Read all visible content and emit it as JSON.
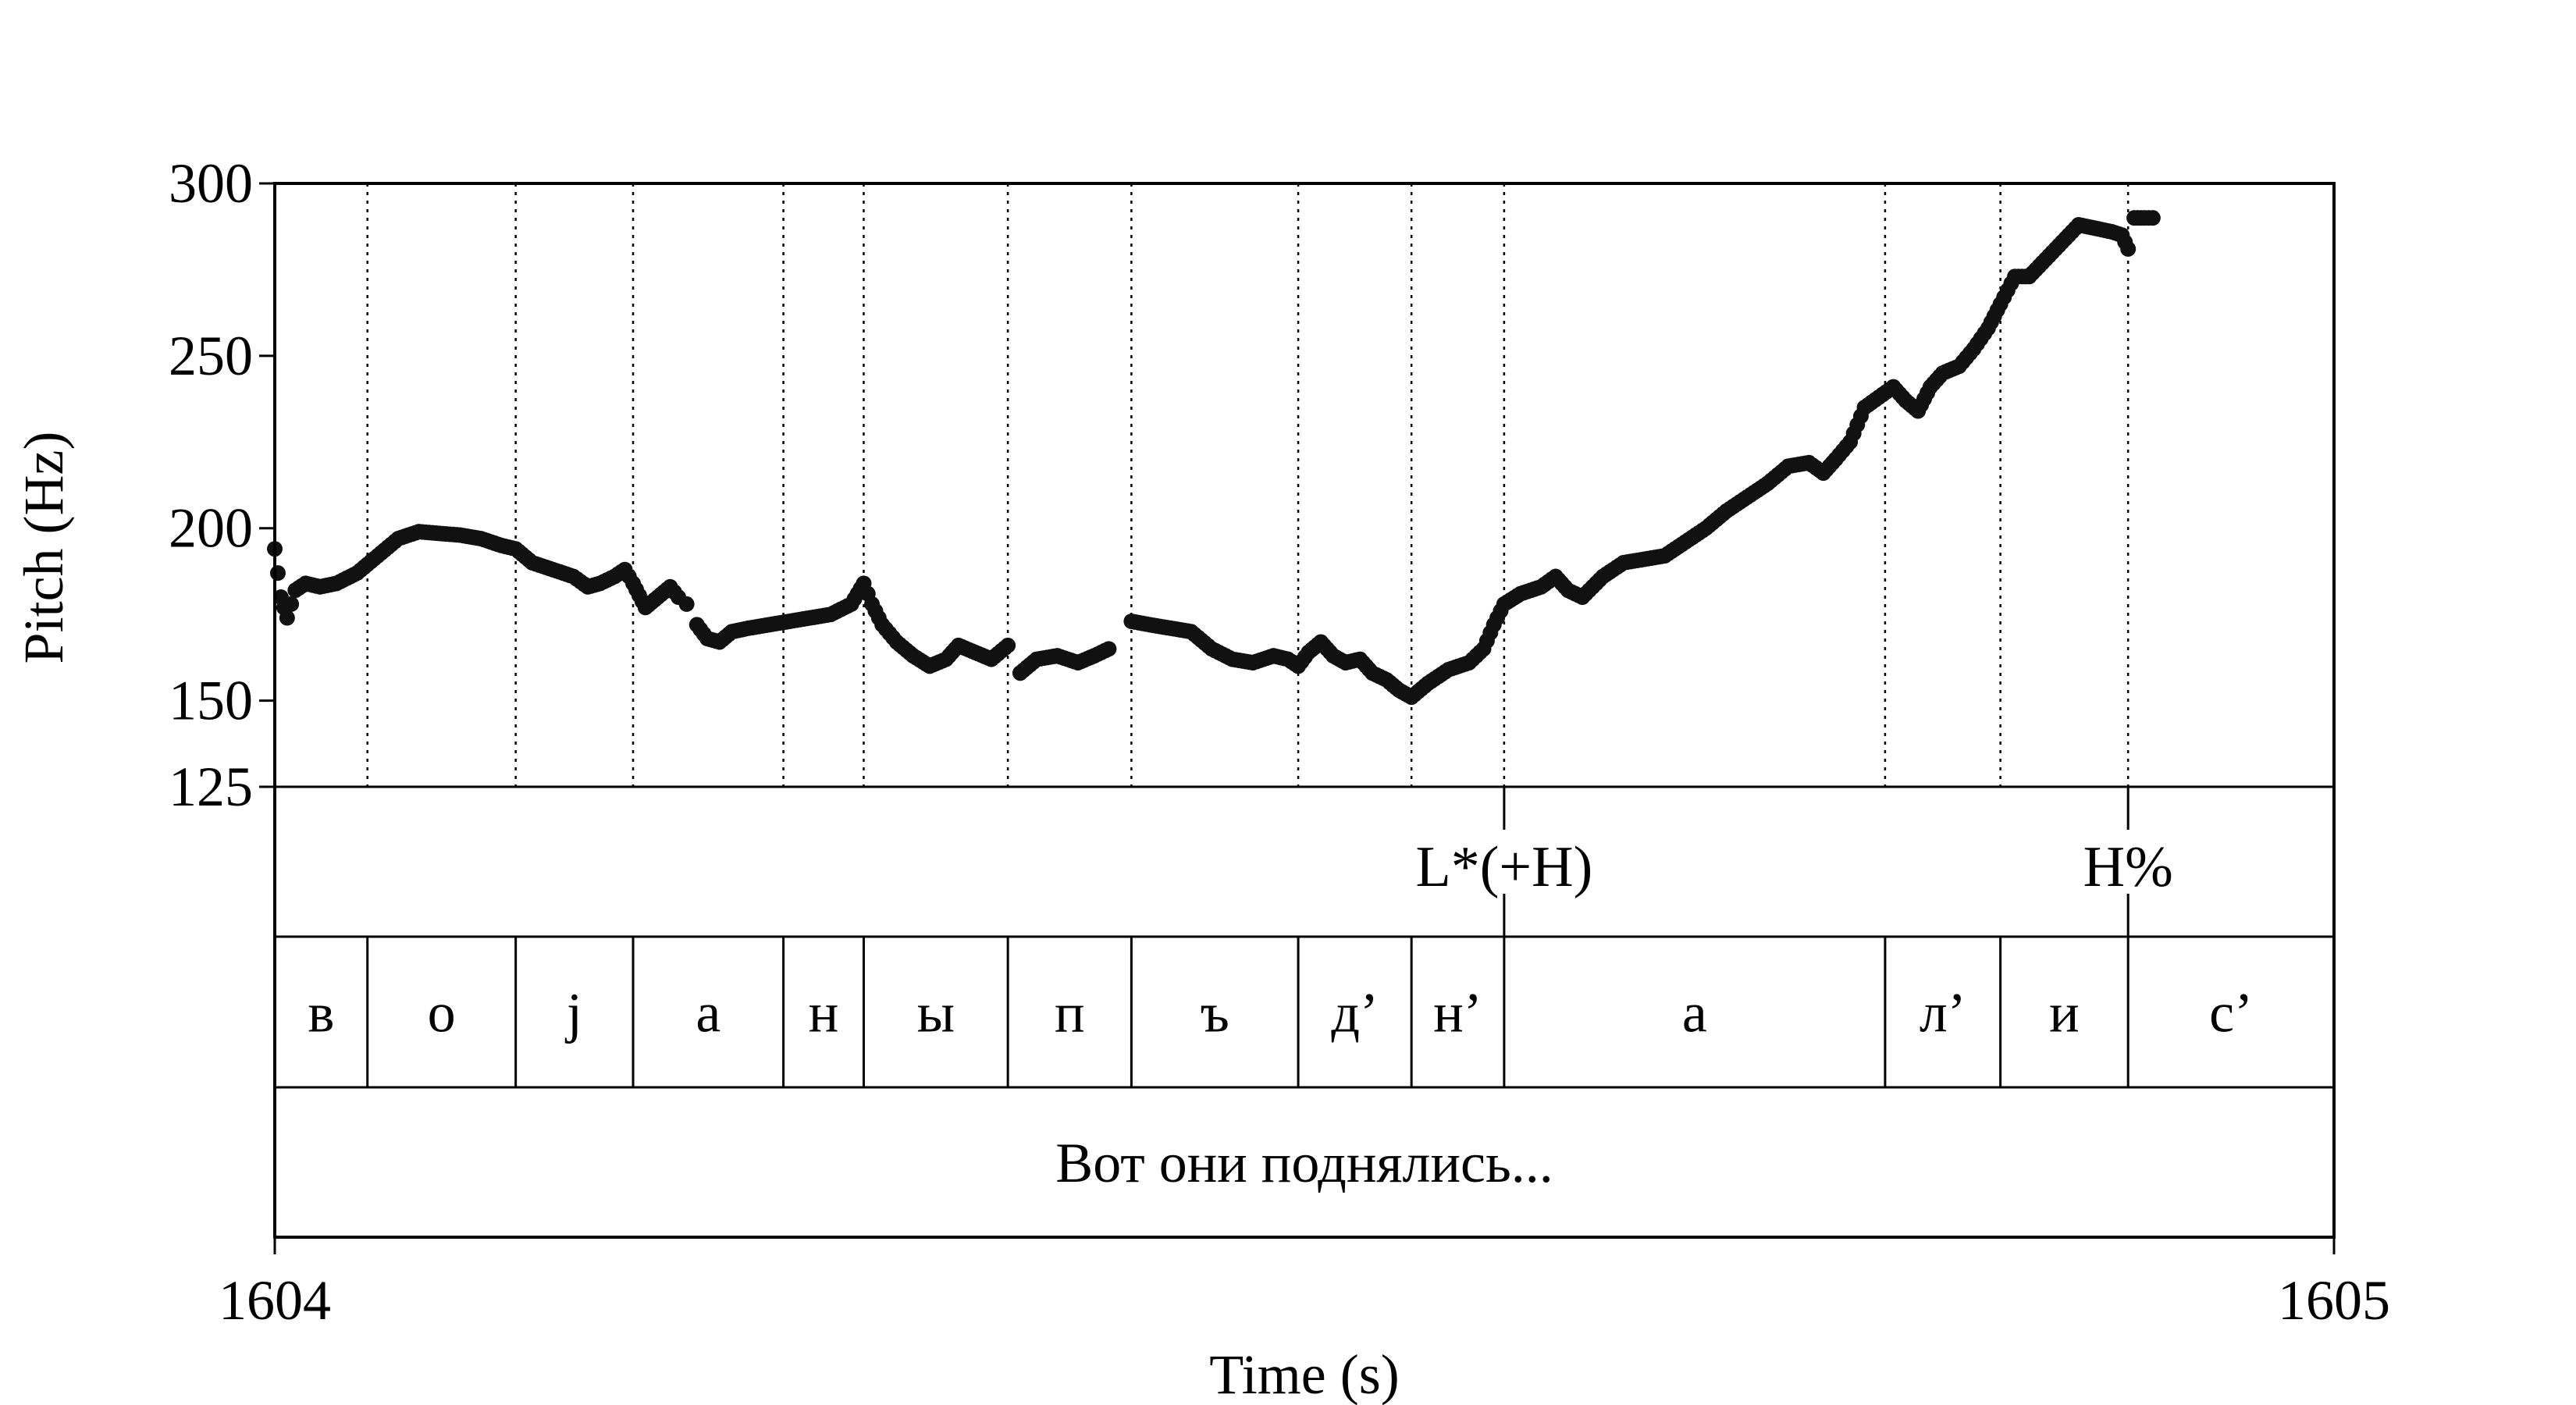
{
  "chart_data": {
    "type": "scatter",
    "xlabel": "Time (s)",
    "ylabel": "Pitch (Hz)",
    "xlim": [
      1604,
      1605
    ],
    "ylim": [
      125,
      300
    ],
    "x_ticks": [
      "1604",
      "1605"
    ],
    "y_ticks": [
      {
        "value": 300,
        "label": "300"
      },
      {
        "value": 250,
        "label": "250"
      },
      {
        "value": 200,
        "label": "200"
      },
      {
        "value": 150,
        "label": "150"
      },
      {
        "value": 125,
        "label": "125"
      }
    ],
    "boundaries": [
      1604.045,
      1604.117,
      1604.174,
      1604.247,
      1604.286,
      1604.356,
      1604.416,
      1604.497,
      1604.552,
      1604.597,
      1604.782,
      1604.838,
      1604.9
    ],
    "tones": [
      {
        "time": 1604.597,
        "label": "L*(+H)"
      },
      {
        "time": 1604.9,
        "label": "H%"
      }
    ],
    "segments": [
      {
        "start": 1604.0,
        "end": 1604.045,
        "label": "в"
      },
      {
        "start": 1604.045,
        "end": 1604.117,
        "label": "о"
      },
      {
        "start": 1604.117,
        "end": 1604.174,
        "label": "j"
      },
      {
        "start": 1604.174,
        "end": 1604.247,
        "label": "а"
      },
      {
        "start": 1604.247,
        "end": 1604.286,
        "label": "н"
      },
      {
        "start": 1604.286,
        "end": 1604.356,
        "label": "ы"
      },
      {
        "start": 1604.356,
        "end": 1604.416,
        "label": "п"
      },
      {
        "start": 1604.416,
        "end": 1604.497,
        "label": "ъ"
      },
      {
        "start": 1604.497,
        "end": 1604.552,
        "label": "д’"
      },
      {
        "start": 1604.552,
        "end": 1604.597,
        "label": "н’"
      },
      {
        "start": 1604.597,
        "end": 1604.782,
        "label": "а"
      },
      {
        "start": 1604.782,
        "end": 1604.838,
        "label": "л’"
      },
      {
        "start": 1604.838,
        "end": 1604.9,
        "label": "и"
      },
      {
        "start": 1604.9,
        "end": 1605.0,
        "label": "с’"
      }
    ],
    "sentence": "Вот они поднялись...",
    "pitch_contour": [
      [
        1604.0,
        194
      ],
      [
        1604.003,
        180
      ],
      [
        1604.006,
        174
      ],
      [
        1604.01,
        182
      ],
      [
        1604.015,
        184
      ],
      [
        1604.022,
        183
      ],
      [
        1604.03,
        184
      ],
      [
        1604.04,
        187
      ],
      [
        1604.05,
        192
      ],
      [
        1604.06,
        197
      ],
      [
        1604.07,
        199
      ],
      [
        1604.08,
        198.5
      ],
      [
        1604.09,
        198
      ],
      [
        1604.1,
        197
      ],
      [
        1604.11,
        195
      ],
      [
        1604.117,
        194
      ],
      [
        1604.125,
        190
      ],
      [
        1604.135,
        188
      ],
      [
        1604.145,
        186
      ],
      [
        1604.152,
        183
      ],
      [
        1604.158,
        184
      ],
      [
        1604.165,
        186
      ],
      [
        1604.17,
        188
      ],
      [
        1604.174,
        184
      ],
      [
        1604.18,
        177
      ],
      [
        1604.186,
        180
      ],
      [
        1604.192,
        183
      ],
      [
        1604.196,
        180
      ],
      [
        1604.2,
        178
      ],
      [
        1604.205,
        172
      ],
      [
        1604.21,
        168
      ],
      [
        1604.216,
        167
      ],
      [
        1604.222,
        170
      ],
      [
        1604.23,
        171
      ],
      [
        1604.24,
        172
      ],
      [
        1604.25,
        173
      ],
      [
        1604.26,
        174
      ],
      [
        1604.27,
        175
      ],
      [
        1604.28,
        178
      ],
      [
        1604.286,
        184
      ],
      [
        1604.29,
        178
      ],
      [
        1604.295,
        172
      ],
      [
        1604.302,
        167
      ],
      [
        1604.31,
        163
      ],
      [
        1604.318,
        160
      ],
      [
        1604.326,
        162
      ],
      [
        1604.332,
        166
      ],
      [
        1604.34,
        164
      ],
      [
        1604.348,
        162
      ],
      [
        1604.356,
        166
      ],
      [
        1604.362,
        158
      ],
      [
        1604.37,
        162
      ],
      [
        1604.38,
        163
      ],
      [
        1604.39,
        161
      ],
      [
        1604.398,
        163
      ],
      [
        1604.405,
        165
      ],
      [
        1604.416,
        173
      ],
      [
        1604.425,
        172
      ],
      [
        1604.435,
        171
      ],
      [
        1604.445,
        170
      ],
      [
        1604.455,
        165
      ],
      [
        1604.465,
        162
      ],
      [
        1604.475,
        161
      ],
      [
        1604.485,
        163
      ],
      [
        1604.492,
        162
      ],
      [
        1604.497,
        160
      ],
      [
        1604.502,
        164
      ],
      [
        1604.508,
        167
      ],
      [
        1604.514,
        163
      ],
      [
        1604.52,
        161
      ],
      [
        1604.527,
        162
      ],
      [
        1604.533,
        158
      ],
      [
        1604.54,
        156
      ],
      [
        1604.546,
        153
      ],
      [
        1604.552,
        151
      ],
      [
        1604.56,
        155
      ],
      [
        1604.57,
        159
      ],
      [
        1604.58,
        161
      ],
      [
        1604.587,
        165
      ],
      [
        1604.592,
        172
      ],
      [
        1604.597,
        178
      ],
      [
        1604.605,
        181
      ],
      [
        1604.615,
        183
      ],
      [
        1604.622,
        186
      ],
      [
        1604.628,
        182
      ],
      [
        1604.635,
        180
      ],
      [
        1604.645,
        186
      ],
      [
        1604.655,
        190
      ],
      [
        1604.665,
        191
      ],
      [
        1604.675,
        192
      ],
      [
        1604.685,
        196
      ],
      [
        1604.695,
        200
      ],
      [
        1604.705,
        205
      ],
      [
        1604.715,
        209
      ],
      [
        1604.725,
        213
      ],
      [
        1604.735,
        218
      ],
      [
        1604.745,
        219
      ],
      [
        1604.752,
        216
      ],
      [
        1604.758,
        220
      ],
      [
        1604.765,
        225
      ],
      [
        1604.772,
        235
      ],
      [
        1604.779,
        238
      ],
      [
        1604.786,
        241
      ],
      [
        1604.792,
        237
      ],
      [
        1604.798,
        234
      ],
      [
        1604.804,
        241
      ],
      [
        1604.81,
        245
      ],
      [
        1604.818,
        247
      ],
      [
        1604.825,
        252
      ],
      [
        1604.832,
        258
      ],
      [
        1604.838,
        265
      ],
      [
        1604.845,
        273
      ],
      [
        1604.852,
        273
      ],
      [
        1604.86,
        278
      ],
      [
        1604.868,
        283
      ],
      [
        1604.876,
        288
      ],
      [
        1604.884,
        287
      ],
      [
        1604.892,
        286
      ],
      [
        1604.897,
        285
      ],
      [
        1604.9,
        281
      ],
      [
        1604.903,
        290
      ],
      [
        1604.908,
        290
      ],
      [
        1604.912,
        290
      ]
    ]
  }
}
